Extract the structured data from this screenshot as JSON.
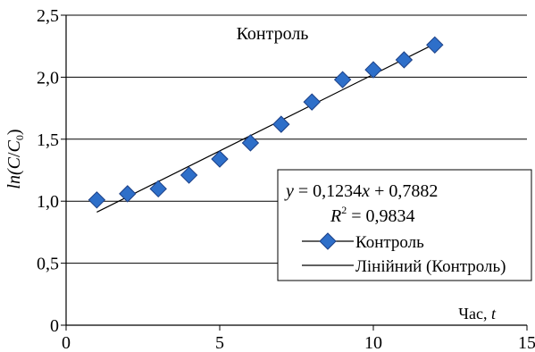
{
  "chart_data": {
    "type": "scatter",
    "title": "Контроль",
    "xlabel_prefix": "Час, ",
    "xlabel_var": "t",
    "ylabel": "ln(C/C0)",
    "xlim": [
      0,
      15
    ],
    "ylim": [
      0,
      2.5
    ],
    "x_ticks": [
      0,
      5,
      10,
      15
    ],
    "y_ticks": [
      0,
      0.5,
      1.0,
      1.5,
      2.0,
      2.5
    ],
    "x_tick_labels": [
      "0",
      "5",
      "10",
      "15"
    ],
    "y_tick_labels": [
      "0",
      "0,5",
      "1,0",
      "1,5",
      "2,0",
      "2,5"
    ],
    "grid": "horizontal",
    "legend_position": "right",
    "series": [
      {
        "name": "Контроль",
        "marker": "diamond",
        "color": "#2e6fc9",
        "x": [
          1,
          2,
          3,
          4,
          5,
          6,
          7,
          8,
          9,
          10,
          11,
          12
        ],
        "y": [
          1.01,
          1.06,
          1.1,
          1.21,
          1.34,
          1.47,
          1.62,
          1.8,
          1.98,
          2.06,
          2.14,
          2.26
        ]
      }
    ],
    "trendline": {
      "name": "Лінійний (Контроль)",
      "slope": 0.1234,
      "intercept": 0.7882,
      "x_range": [
        1,
        12
      ],
      "color": "#000000"
    },
    "equation_text": "= 0,1234x + 0,7882",
    "equation_var": "y",
    "r2_label": "R",
    "r2_sup": "2",
    "r2_value": " = 0,9834",
    "legend_entries": [
      "Контроль",
      "Лінійний (Контроль)"
    ]
  }
}
